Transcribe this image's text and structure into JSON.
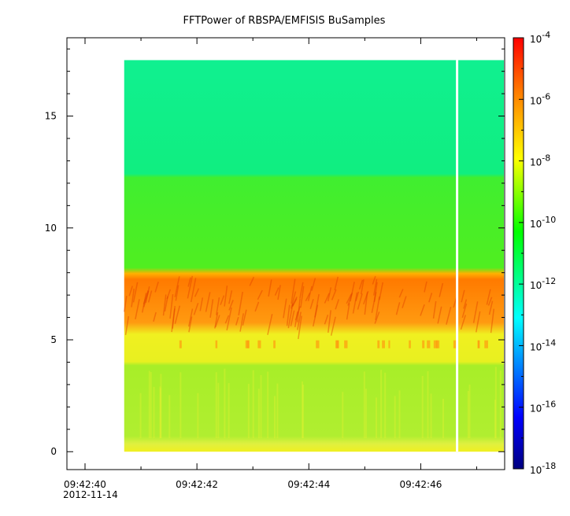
{
  "chart_data": {
    "type": "heatmap",
    "title": "FFTPower of RBSPA/EMFISIS  BuSamples",
    "xlabel": "",
    "ylabel": "",
    "x_axis": {
      "range_seconds": [
        "09:42:40",
        "09:42:47.5"
      ],
      "tick_labels": [
        "09:42:40",
        "09:42:42",
        "09:42:44",
        "09:42:46"
      ],
      "date_label": "2012-11-14",
      "minor_ticks": [
        "09:42:41",
        "09:42:43",
        "09:42:45",
        "09:42:47"
      ]
    },
    "y_axis": {
      "range": [
        -0.8,
        18.5
      ],
      "tick_labels": [
        "0",
        "5",
        "10",
        "15"
      ]
    },
    "data_extent": {
      "x_start": "09:42:40.7",
      "x_end": "09:42:47.5",
      "y_min": 0,
      "y_max": 17.5,
      "gap_time": "09:42:46.65"
    },
    "bands": [
      {
        "y_from": 0.0,
        "y_to": 0.5,
        "level": "yellow"
      },
      {
        "y_from": 0.5,
        "y_to": 4.0,
        "level": "light-green"
      },
      {
        "y_from": 4.0,
        "y_to": 5.8,
        "level": "yellow"
      },
      {
        "y_from": 5.8,
        "y_to": 8.0,
        "level": "orange"
      },
      {
        "y_from": 8.0,
        "y_to": 12.3,
        "level": "green"
      },
      {
        "y_from": 12.3,
        "y_to": 17.5,
        "level": "cyan-green"
      }
    ],
    "colorbar": {
      "scale": "log",
      "range": [
        "1e-18",
        "1e-4"
      ],
      "tick_base": "10",
      "tick_exponents": [
        "-4",
        "-6",
        "-8",
        "-10",
        "-12",
        "-14",
        "-16",
        "-18"
      ],
      "colors": [
        "#ff0000",
        "#ff8000",
        "#ffff00",
        "#00ff00",
        "#00ffff",
        "#0000ff",
        "#000080"
      ]
    }
  }
}
